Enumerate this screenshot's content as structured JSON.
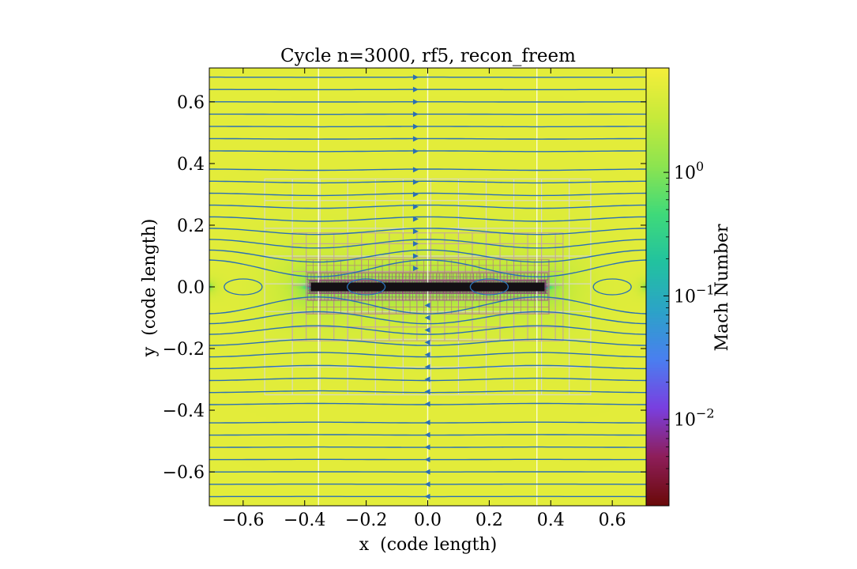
{
  "chart_data": {
    "type": "heatmap",
    "title": "Cycle n=3000, rf5, recon_freem",
    "xlabel": "x  (code length)",
    "ylabel": "y  (code length)",
    "xlim": [
      -0.71,
      0.71
    ],
    "ylim": [
      -0.71,
      0.71
    ],
    "x_ticks": [
      -0.6,
      -0.4,
      -0.2,
      0.0,
      0.2,
      0.4,
      0.6
    ],
    "y_ticks": [
      -0.6,
      -0.4,
      -0.2,
      0.0,
      0.2,
      0.4,
      0.6
    ],
    "x_tick_labels": [
      "−0.6",
      "−0.4",
      "−0.2",
      "0.0",
      "0.2",
      "0.4",
      "0.6"
    ],
    "y_tick_labels": [
      "−0.6",
      "−0.4",
      "−0.2",
      "0.0",
      "0.2",
      "0.4",
      "0.6"
    ],
    "colorbar": {
      "label": "Mach Number",
      "scale": "log",
      "range": [
        0.002,
        7.0
      ],
      "ticks": [
        1.0,
        0.1,
        0.01
      ],
      "tick_labels": [
        {
          "base": "10",
          "exp": "0"
        },
        {
          "base": "10",
          "exp": "−1"
        },
        {
          "base": "10",
          "exp": "−2"
        }
      ],
      "colormap": [
        "#6b0a0a",
        "#8e1e5a",
        "#7a3fe0",
        "#4a7ff0",
        "#2ca3c8",
        "#22c2a0",
        "#3fda7a",
        "#8de450",
        "#c7ea3a",
        "#f4ee3a"
      ]
    },
    "field": {
      "free_stream_mach": 5.0,
      "strip_x": [
        -0.38,
        0.38
      ],
      "strip_y": [
        -0.01,
        0.01
      ],
      "stagnation_mach": 0.003
    },
    "amr_levels": [
      {
        "x": [
          -0.53,
          0.53
        ],
        "y": [
          -0.35,
          0.35
        ],
        "cell": 0.09
      },
      {
        "x": [
          -0.44,
          0.44
        ],
        "y": [
          -0.175,
          0.175
        ],
        "cell": 0.045
      },
      {
        "x": [
          -0.395,
          0.395
        ],
        "y": [
          -0.088,
          0.088
        ],
        "cell": 0.0225
      },
      {
        "x": [
          -0.39,
          0.39
        ],
        "y": [
          -0.044,
          0.044
        ],
        "cell": 0.011
      },
      {
        "x": [
          -0.385,
          0.385
        ],
        "y": [
          -0.02,
          0.02
        ],
        "cell": 0.0056
      }
    ],
    "streamlines": {
      "color": "#2a6fb5",
      "y_start": [
        -0.68,
        -0.64,
        -0.6,
        -0.56,
        -0.52,
        -0.48,
        -0.44,
        -0.38,
        -0.34,
        -0.3,
        -0.26,
        -0.22,
        -0.18,
        -0.14,
        -0.1,
        -0.06,
        0.06,
        0.1,
        0.14,
        0.18,
        0.22,
        0.26,
        0.3,
        0.34,
        0.38,
        0.44,
        0.48,
        0.52,
        0.56,
        0.6,
        0.64,
        0.68
      ]
    },
    "grid": true
  }
}
